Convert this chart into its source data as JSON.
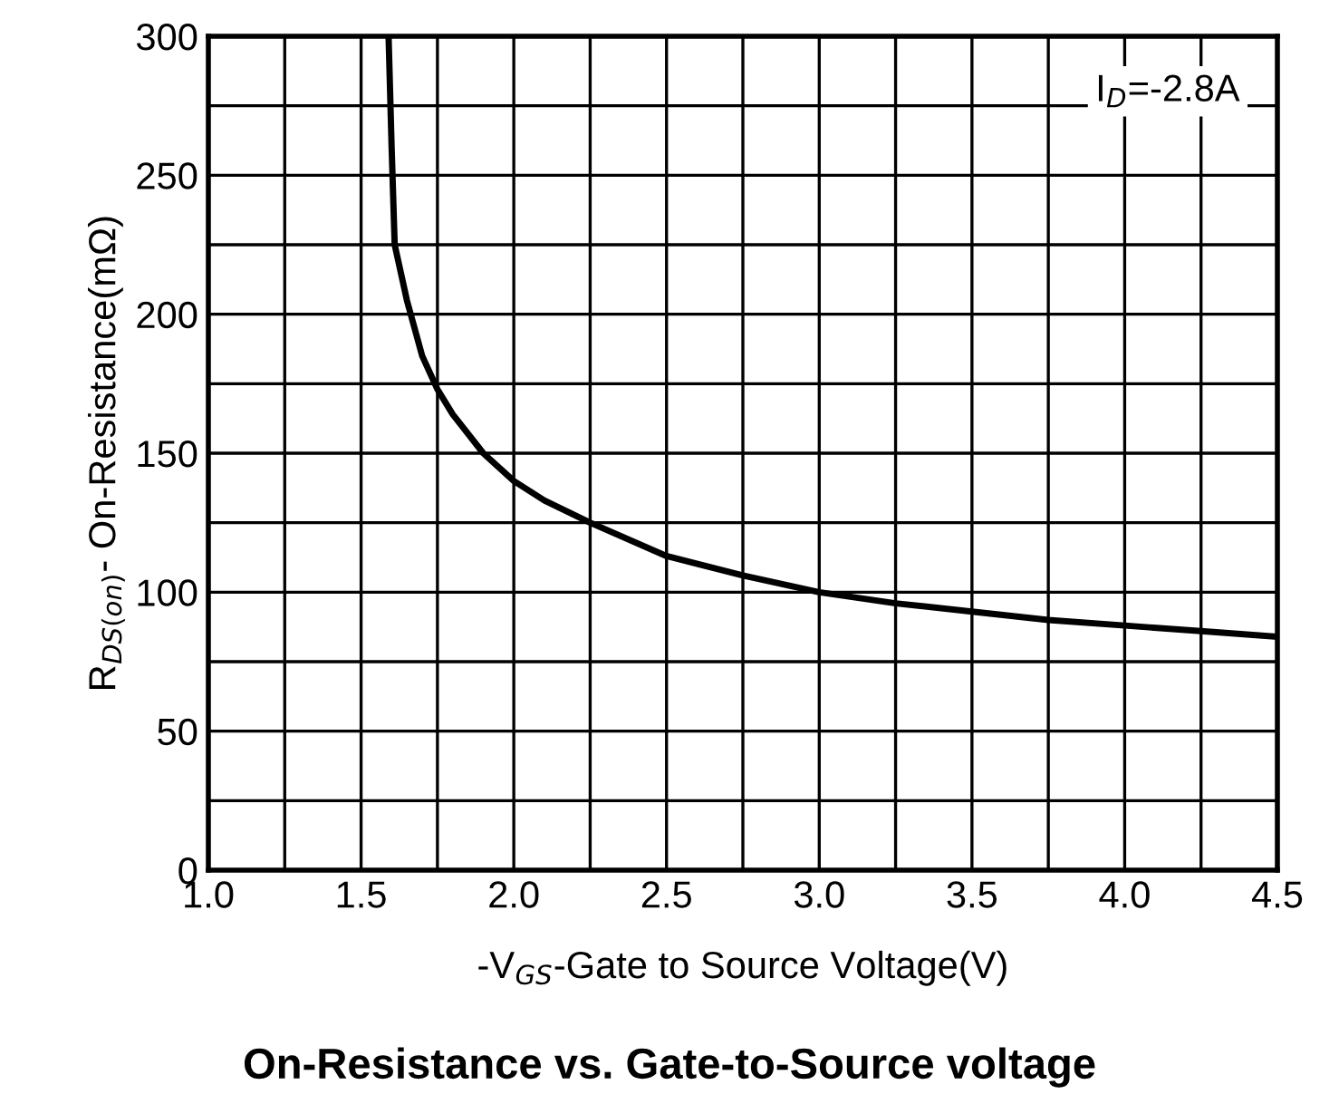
{
  "chart_data": {
    "type": "line",
    "title": "On-Resistance vs. Gate-to-Source voltage",
    "xlabel": "-V$_{GS}$-Gate to Source Voltage(V)",
    "ylabel": "R$_{DS(on)}$- On-Resistance(mΩ)",
    "annotations": [
      "I$_{D}$=-2.8A"
    ],
    "series": [
      {
        "color": "#000000",
        "x": [
          1.59,
          1.6,
          1.61,
          1.65,
          1.7,
          1.75,
          1.8,
          1.9,
          2.0,
          2.1,
          2.25,
          2.5,
          2.75,
          3.0,
          3.25,
          3.5,
          3.75,
          4.0,
          4.25,
          4.5
        ],
        "values": [
          300,
          260,
          225,
          205,
          185,
          173,
          164,
          150,
          140,
          133,
          125,
          113,
          106,
          100,
          96,
          93,
          90,
          88,
          86,
          84
        ]
      }
    ],
    "xlim": [
      1.0,
      4.5
    ],
    "ylim": [
      0,
      300
    ],
    "xticks": [
      {
        "value": 1.0,
        "label": "1.0"
      },
      {
        "value": 1.25,
        "label": null
      },
      {
        "value": 1.5,
        "label": "1.5"
      },
      {
        "value": 1.75,
        "label": null
      },
      {
        "value": 2.0,
        "label": "2.0"
      },
      {
        "value": 2.25,
        "label": null
      },
      {
        "value": 2.5,
        "label": "2.5"
      },
      {
        "value": 2.75,
        "label": null
      },
      {
        "value": 3.0,
        "label": "3.0"
      },
      {
        "value": 3.25,
        "label": null
      },
      {
        "value": 3.5,
        "label": "3.5"
      },
      {
        "value": 3.75,
        "label": null
      },
      {
        "value": 4.0,
        "label": "4.0"
      },
      {
        "value": 4.25,
        "label": null
      },
      {
        "value": 4.5,
        "label": "4.5"
      }
    ],
    "yticks": [
      0,
      {
        "value": 25,
        "label": null
      },
      50,
      {
        "value": 75,
        "label": null
      },
      100,
      {
        "value": 125,
        "label": null
      },
      150,
      {
        "value": 175,
        "label": null
      },
      200,
      {
        "value": 225,
        "label": null
      },
      250,
      {
        "value": 275,
        "label": null
      },
      300
    ],
    "grid": true,
    "line_style": "solid",
    "marker": "none",
    "legend": false
  }
}
